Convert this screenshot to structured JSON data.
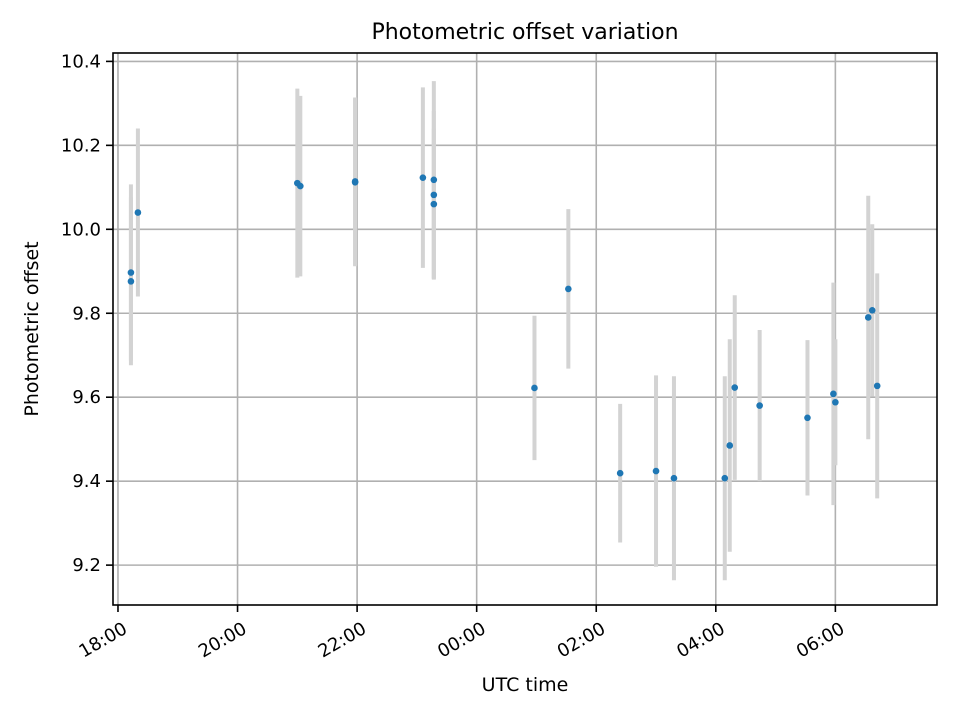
{
  "chart_data": {
    "type": "scatter",
    "title": "Photometric offset variation",
    "xlabel": "UTC time",
    "ylabel": "Photometric offset",
    "x_ticks": [
      "18:00",
      "20:00",
      "22:00",
      "00:00",
      "02:00",
      "04:00",
      "06:00"
    ],
    "y_ticks": [
      "9.2",
      "9.4",
      "9.6",
      "9.8",
      "10.0",
      "10.2",
      "10.4"
    ],
    "xlim": [
      "17:55",
      "07:42"
    ],
    "ylim": [
      9.105,
      10.42
    ],
    "grid": true,
    "marker_color": "#1f77b4",
    "errorbar_color": "#d3d3d3",
    "points": [
      {
        "x": "18:13",
        "y": 9.897,
        "err": 0.21
      },
      {
        "x": "18:13",
        "y": 9.876,
        "err": 0.2
      },
      {
        "x": "18:20",
        "y": 10.04,
        "err": 0.2
      },
      {
        "x": "21:00",
        "y": 10.11,
        "err": 0.225
      },
      {
        "x": "21:03",
        "y": 10.103,
        "err": 0.215
      },
      {
        "x": "21:58",
        "y": 10.114,
        "err": 0.2
      },
      {
        "x": "21:58",
        "y": 10.112,
        "err": 0.2
      },
      {
        "x": "23:06",
        "y": 10.123,
        "err": 0.215
      },
      {
        "x": "23:17",
        "y": 10.118,
        "err": 0.235
      },
      {
        "x": "23:17",
        "y": 10.082,
        "err": 0.2
      },
      {
        "x": "23:17",
        "y": 10.06,
        "err": 0.18
      },
      {
        "x": "00:58",
        "y": 9.622,
        "err": 0.172
      },
      {
        "x": "01:32",
        "y": 9.858,
        "err": 0.19
      },
      {
        "x": "02:24",
        "y": 9.419,
        "err": 0.165
      },
      {
        "x": "03:00",
        "y": 9.424,
        "err": 0.228
      },
      {
        "x": "03:18",
        "y": 9.407,
        "err": 0.243
      },
      {
        "x": "04:09",
        "y": 9.407,
        "err": 0.243
      },
      {
        "x": "04:14",
        "y": 9.485,
        "err": 0.253
      },
      {
        "x": "04:19",
        "y": 9.623,
        "err": 0.22
      },
      {
        "x": "04:44",
        "y": 9.58,
        "err": 0.18
      },
      {
        "x": "05:32",
        "y": 9.551,
        "err": 0.185
      },
      {
        "x": "05:58",
        "y": 9.608,
        "err": 0.265
      },
      {
        "x": "06:00",
        "y": 9.588,
        "err": 0.15
      },
      {
        "x": "06:33",
        "y": 9.79,
        "err": 0.29
      },
      {
        "x": "06:37",
        "y": 9.807,
        "err": 0.205
      },
      {
        "x": "06:42",
        "y": 9.627,
        "err": 0.268
      }
    ]
  }
}
